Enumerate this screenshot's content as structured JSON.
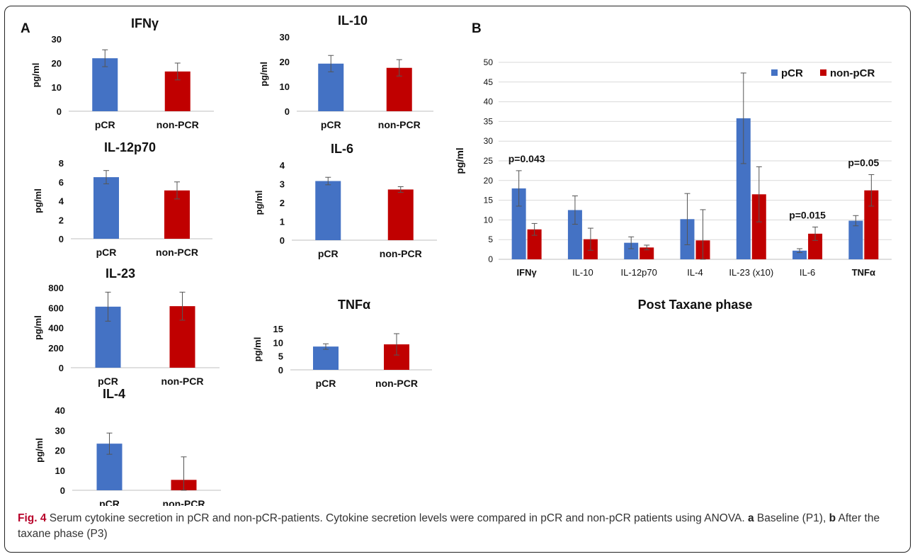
{
  "panels": {
    "a": "A",
    "b": "B"
  },
  "caption": {
    "label": "Fig. 4",
    "text": " Serum cytokine secretion in pCR and non-pCR-patients. Cytokine secretion levels were compared in pCR and non-pCR patients using ANOVA. ",
    "a_letter": "a",
    "a_text": " Baseline (P1), ",
    "b_letter": "b",
    "b_text": " After the taxane phase (P3)"
  },
  "colors": {
    "pcr": "#4472C4",
    "nonpcr": "#C00000",
    "error": "#555555",
    "grid": "#d9d9d9"
  },
  "chart_data": [
    {
      "type": "bar",
      "panel": "A",
      "title": "IFNγ",
      "ylabel": "pg/ml",
      "categories": [
        "pCR",
        "non-PCR"
      ],
      "values": [
        22,
        16.5
      ],
      "errors": [
        3.5,
        3.5
      ],
      "ylim": [
        0,
        30
      ],
      "yticks": [
        0,
        10,
        20,
        30
      ]
    },
    {
      "type": "bar",
      "panel": "A",
      "title": "IL-10",
      "ylabel": "pg/ml",
      "categories": [
        "pCR",
        "non-PCR"
      ],
      "values": [
        19.2,
        17.5
      ],
      "errors": [
        3.3,
        3.3
      ],
      "ylim": [
        0,
        30
      ],
      "yticks": [
        0,
        10,
        20,
        30
      ]
    },
    {
      "type": "bar",
      "panel": "A",
      "title": "IL-12p70",
      "ylabel": "pg/ml",
      "categories": [
        "pCR",
        "non-PCR"
      ],
      "values": [
        6.5,
        5.1
      ],
      "errors": [
        0.7,
        0.9
      ],
      "ylim": [
        0,
        8
      ],
      "yticks": [
        0,
        2,
        4,
        6,
        8
      ]
    },
    {
      "type": "bar",
      "panel": "A",
      "title": "IL-6",
      "ylabel": "pg/ml",
      "categories": [
        "pCR",
        "non-PCR"
      ],
      "values": [
        3.15,
        2.7
      ],
      "errors": [
        0.2,
        0.15
      ],
      "ylim": [
        0,
        4
      ],
      "yticks": [
        0,
        1,
        2,
        3,
        4
      ]
    },
    {
      "type": "bar",
      "panel": "A",
      "title": "IL-23",
      "ylabel": "pg/ml",
      "categories": [
        "pCR",
        "non-PCR"
      ],
      "values": [
        610,
        615
      ],
      "errors": [
        145,
        140
      ],
      "ylim": [
        0,
        800
      ],
      "yticks": [
        0,
        200,
        400,
        600,
        800
      ]
    },
    {
      "type": "bar",
      "panel": "A",
      "title": "TNFα",
      "ylabel": "pg/ml",
      "categories": [
        "pCR",
        "non-PCR"
      ],
      "values": [
        8.5,
        9.3
      ],
      "errors": [
        1.0,
        3.9
      ],
      "ylim": [
        0,
        15
      ],
      "yticks": [
        0,
        5,
        10,
        15
      ]
    },
    {
      "type": "bar",
      "panel": "A",
      "title": "IL-4",
      "ylabel": "pg/ml",
      "categories": [
        "pCR",
        "non-PCR"
      ],
      "values": [
        23.3,
        5.2
      ],
      "errors": [
        5.3,
        11.5
      ],
      "ylim": [
        0,
        40
      ],
      "yticks": [
        0,
        10,
        20,
        30,
        40
      ]
    },
    {
      "type": "bar",
      "panel": "B",
      "xlabel": "Post Taxane phase",
      "ylabel": "pg/ml",
      "categories": [
        "IFNγ",
        "IL-10",
        "IL-12p70",
        "IL-4",
        "IL-23 (x10)",
        "IL-6",
        "TNFα"
      ],
      "series": [
        {
          "name": "pCR",
          "values": [
            18,
            12.5,
            4.2,
            10.2,
            35.8,
            2.2,
            9.8
          ],
          "errors": [
            4.5,
            3.6,
            1.5,
            6.5,
            11.5,
            0.5,
            1.3
          ]
        },
        {
          "name": "non-pCR",
          "values": [
            7.6,
            5.1,
            3.0,
            4.8,
            16.5,
            6.5,
            17.5
          ],
          "errors": [
            1.5,
            2.8,
            0.6,
            7.8,
            7.0,
            1.7,
            4.0
          ]
        }
      ],
      "annotations": [
        {
          "category": "IFNγ",
          "text": "p=0.043"
        },
        {
          "category": "IL-6",
          "text": "p=0.015"
        },
        {
          "category": "TNFα",
          "text": "p=0.05"
        }
      ],
      "ylim": [
        0,
        50
      ],
      "yticks": [
        0,
        5,
        10,
        15,
        20,
        25,
        30,
        35,
        40,
        45,
        50
      ],
      "grid": true,
      "legend": "top-right"
    }
  ]
}
